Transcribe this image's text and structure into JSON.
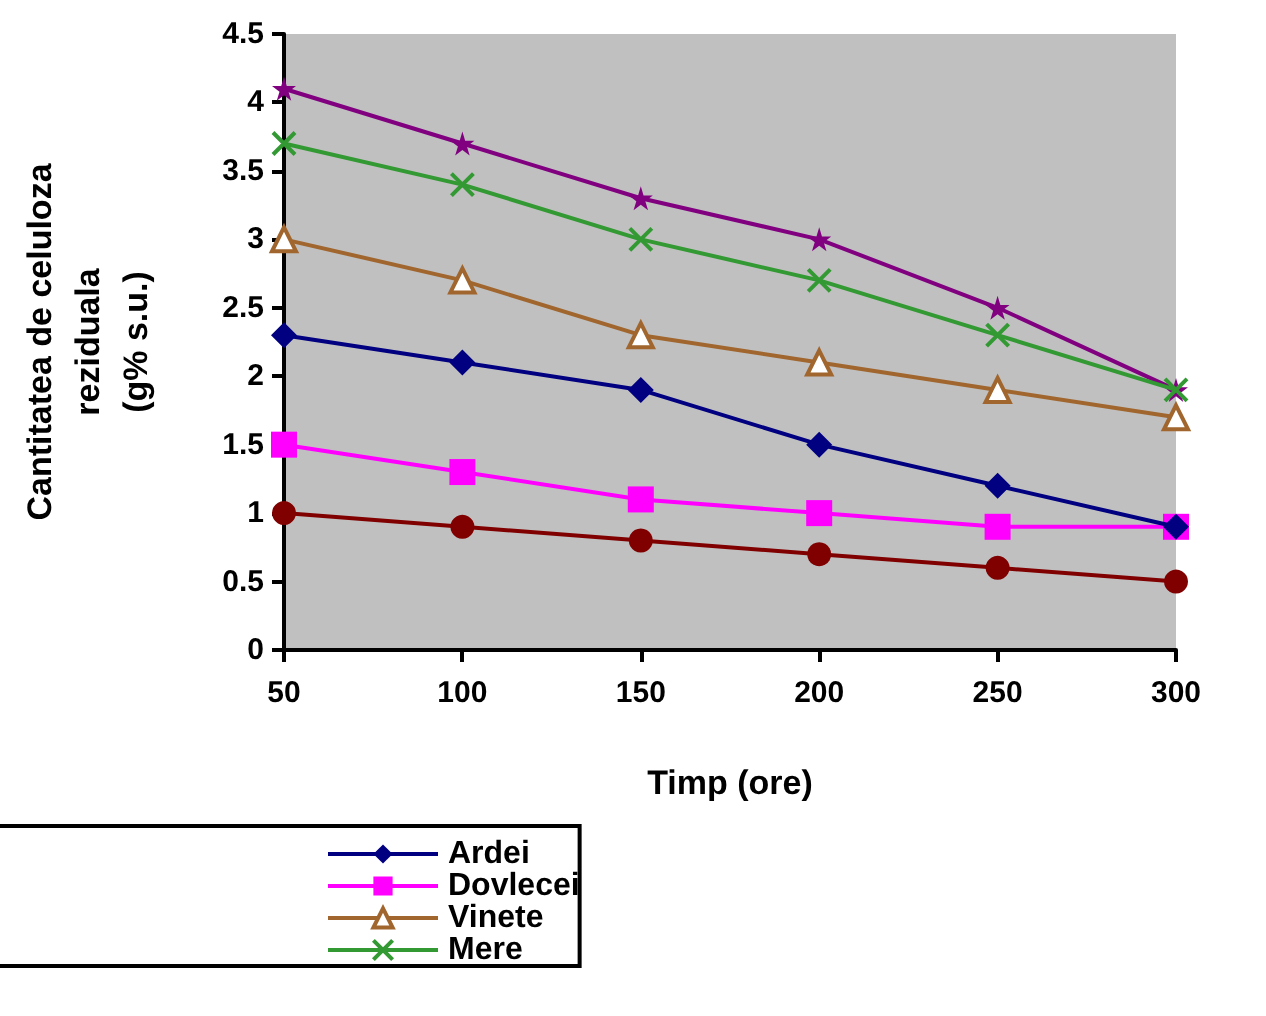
{
  "chart_data": {
    "type": "line",
    "xlabel": "Timp (ore)",
    "ylabel": "Cantitatea de celuloza\nreziduala\n(g% s.u.)",
    "x": [
      50,
      100,
      150,
      200,
      250,
      300
    ],
    "xlim": [
      50,
      300
    ],
    "xticks": [
      50,
      100,
      150,
      200,
      250,
      300
    ],
    "ylim": [
      0,
      4.5
    ],
    "yticks": [
      0,
      0.5,
      1,
      1.5,
      2,
      2.5,
      3,
      3.5,
      4,
      4.5
    ],
    "grid": false,
    "legend": "bottom",
    "series": [
      {
        "name": "Ardei",
        "color": "#000080",
        "marker": "diamond",
        "values": [
          2.3,
          2.1,
          1.9,
          1.5,
          1.2,
          0.9
        ]
      },
      {
        "name": "Dovlecei",
        "color": "#ff00ff",
        "marker": "square",
        "values": [
          1.5,
          1.3,
          1.1,
          1.0,
          0.9,
          0.9
        ]
      },
      {
        "name": "Vinete",
        "color": "#a0662e",
        "marker": "triangle",
        "values": [
          3.0,
          2.7,
          2.3,
          2.1,
          1.9,
          1.7
        ]
      },
      {
        "name": "Mere",
        "color": "#339933",
        "marker": "cross",
        "values": [
          3.7,
          3.4,
          3.0,
          2.7,
          2.3,
          1.9
        ]
      },
      {
        "color": "#800080",
        "marker": "star",
        "values": [
          4.1,
          3.7,
          3.3,
          3.0,
          2.5,
          1.9
        ]
      },
      {
        "color": "#800000",
        "marker": "circle",
        "values": [
          1.0,
          0.9,
          0.8,
          0.7,
          0.6,
          0.5
        ]
      }
    ]
  }
}
